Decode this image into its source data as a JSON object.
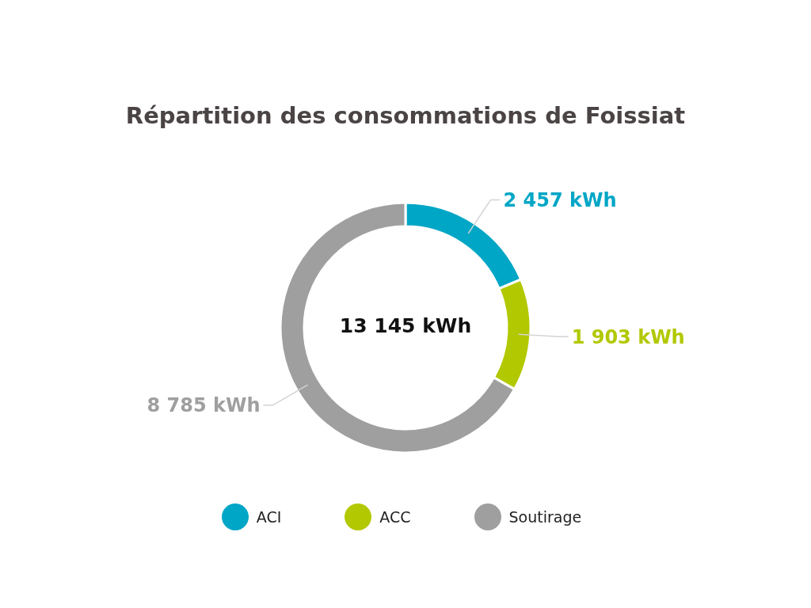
{
  "chart_data": {
    "type": "donut",
    "title": "Répartition des consommations de Foissiat",
    "categories": [
      "ACI",
      "ACC",
      "Soutirage"
    ],
    "values": [
      2457,
      1903,
      8785
    ],
    "colors": [
      "#00a6c6",
      "#b2c800",
      "#a09fa0"
    ],
    "value_labels": [
      "2 457 kWh",
      "1 903 kWh",
      "8 785 kWh"
    ],
    "annotations": [
      "13 145 kWh"
    ],
    "legend": "bottom"
  }
}
